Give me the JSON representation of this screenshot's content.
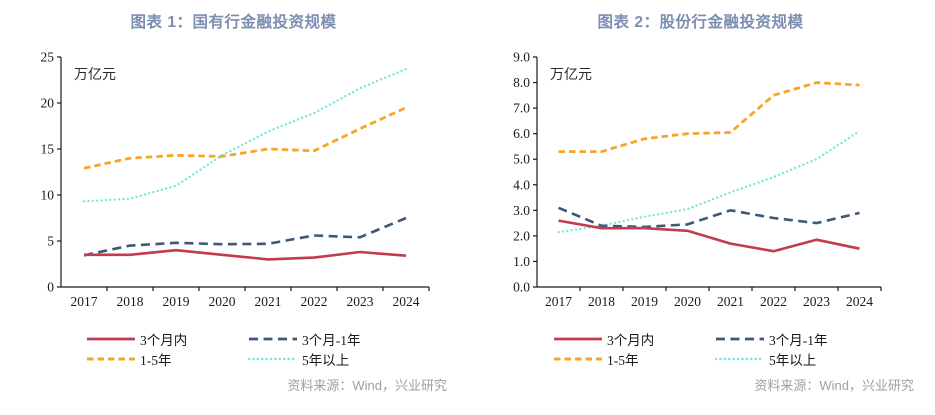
{
  "theme": {
    "title_color": "#7C8EB1",
    "axis_color": "#1a1a1a",
    "tick_text_color": "#1a1a1a",
    "unit_text_color": "#2b2b2b",
    "source_color": "#9aa0a6",
    "background": "#ffffff"
  },
  "chart_data": [
    {
      "type": "line",
      "title": "图表 1：国有行金融投资规模",
      "unit_label": "万亿元",
      "source": "资料来源：Wind，兴业研究",
      "grid": false,
      "legend_position": "bottom",
      "categories": [
        "2017",
        "2018",
        "2019",
        "2020",
        "2021",
        "2022",
        "2023",
        "2024"
      ],
      "y_axis": {
        "min": 0,
        "max": 25,
        "step": 5,
        "decimals": 0
      },
      "series": [
        {
          "name": "3个月内",
          "style": "solid",
          "color": "#C23B50",
          "values": [
            3.5,
            3.5,
            4.0,
            3.5,
            3.0,
            3.2,
            3.8,
            3.4
          ]
        },
        {
          "name": "3个月-1年",
          "style": "dashed",
          "color": "#3F5877",
          "values": [
            3.45,
            4.5,
            4.8,
            4.65,
            4.7,
            5.6,
            5.4,
            7.5
          ]
        },
        {
          "name": "1-5年",
          "style": "dashed-short",
          "color": "#F7A428",
          "values": [
            12.9,
            14.0,
            14.3,
            14.2,
            15.0,
            14.8,
            17.2,
            19.5
          ]
        },
        {
          "name": "5年以上",
          "style": "dotted",
          "color": "#74E5E0",
          "values": [
            9.3,
            9.6,
            11.0,
            14.3,
            16.9,
            18.9,
            21.6,
            23.7
          ]
        }
      ]
    },
    {
      "type": "line",
      "title": "图表 2：股份行金融投资规模",
      "unit_label": "万亿元",
      "source": "资料来源：Wind，兴业研究",
      "grid": false,
      "legend_position": "bottom",
      "categories": [
        "2017",
        "2018",
        "2019",
        "2020",
        "2021",
        "2022",
        "2023",
        "2024"
      ],
      "y_axis": {
        "min": 0,
        "max": 9,
        "step": 1,
        "decimals": 1
      },
      "series": [
        {
          "name": "3个月内",
          "style": "solid",
          "color": "#C23B50",
          "values": [
            2.6,
            2.3,
            2.3,
            2.2,
            1.7,
            1.4,
            1.85,
            1.5
          ]
        },
        {
          "name": "3个月-1年",
          "style": "dashed",
          "color": "#3F5877",
          "values": [
            3.1,
            2.4,
            2.35,
            2.45,
            3.0,
            2.7,
            2.5,
            2.9
          ]
        },
        {
          "name": "1-5年",
          "style": "dashed-short",
          "color": "#F7A428",
          "values": [
            5.3,
            5.3,
            5.8,
            6.0,
            6.05,
            7.5,
            8.0,
            7.9
          ]
        },
        {
          "name": "5年以上",
          "style": "dotted",
          "color": "#74E5E0",
          "values": [
            2.15,
            2.4,
            2.75,
            3.05,
            3.7,
            4.3,
            5.0,
            6.1
          ]
        }
      ]
    }
  ]
}
